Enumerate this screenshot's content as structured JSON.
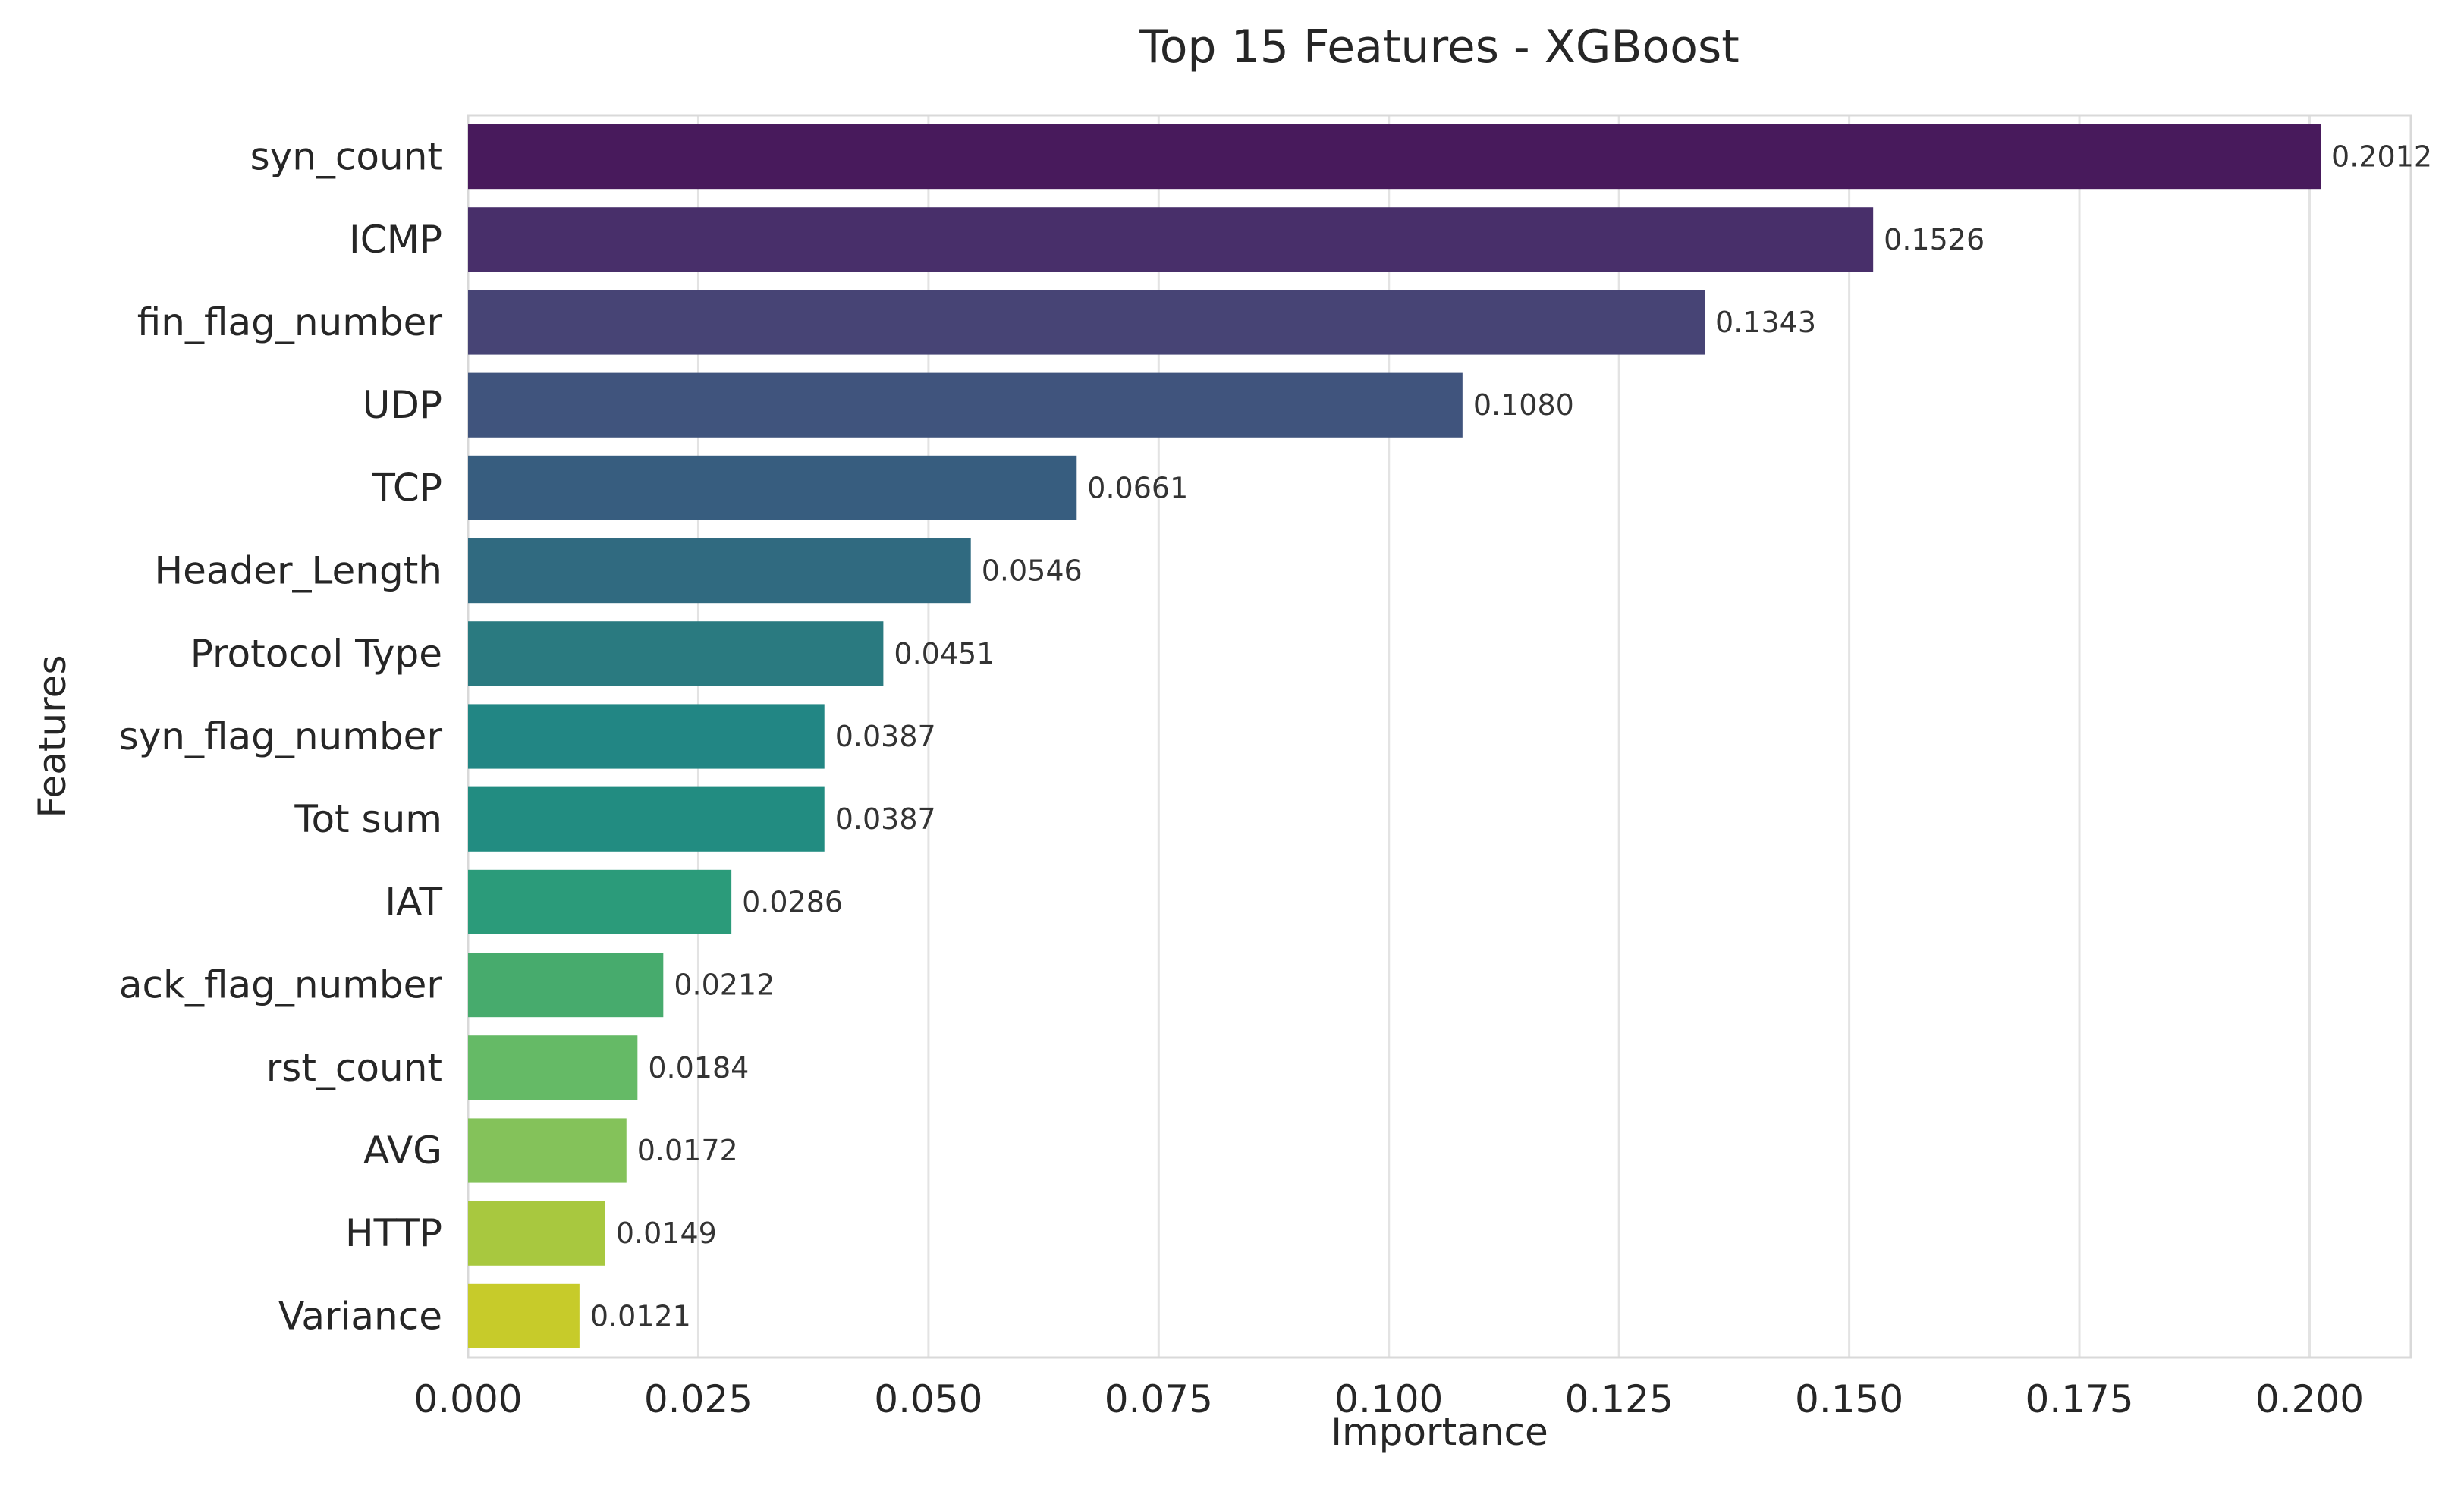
{
  "chart_data": {
    "type": "bar",
    "orientation": "horizontal",
    "title": "Top 15 Features - XGBoost",
    "xlabel": "Importance",
    "ylabel": "Features",
    "xlim": [
      0,
      0.211
    ],
    "x_ticks": [
      "0.000",
      "0.025",
      "0.050",
      "0.075",
      "0.100",
      "0.125",
      "0.150",
      "0.175",
      "0.200"
    ],
    "grid": true,
    "legend": "none",
    "colormap": "viridis",
    "categories": [
      "syn_count",
      "ICMP",
      "fin_flag_number",
      "UDP",
      "TCP",
      "Header_Length",
      "Protocol Type",
      "syn_flag_number",
      "Tot sum",
      "IAT",
      "ack_flag_number",
      "rst_count",
      "AVG",
      "HTTP",
      "Variance"
    ],
    "values": [
      0.2012,
      0.1526,
      0.1343,
      0.108,
      0.0661,
      0.0546,
      0.0451,
      0.0387,
      0.0387,
      0.0286,
      0.0212,
      0.0184,
      0.0172,
      0.0149,
      0.0121
    ],
    "value_labels": [
      "0.2012",
      "0.1526",
      "0.1343",
      "0.1080",
      "0.0661",
      "0.0546",
      "0.0451",
      "0.0387",
      "0.0387",
      "0.0286",
      "0.0212",
      "0.0184",
      "0.0172",
      "0.0149",
      "0.0121"
    ],
    "colors": [
      "#481a5c",
      "#482f6a",
      "#474475",
      "#40547d",
      "#375d7f",
      "#306a80",
      "#2a7a80",
      "#228684",
      "#228c81",
      "#2b9b7a",
      "#47ab6d",
      "#65ba66",
      "#84c25a",
      "#a8c83f",
      "#c7cb2a"
    ]
  }
}
